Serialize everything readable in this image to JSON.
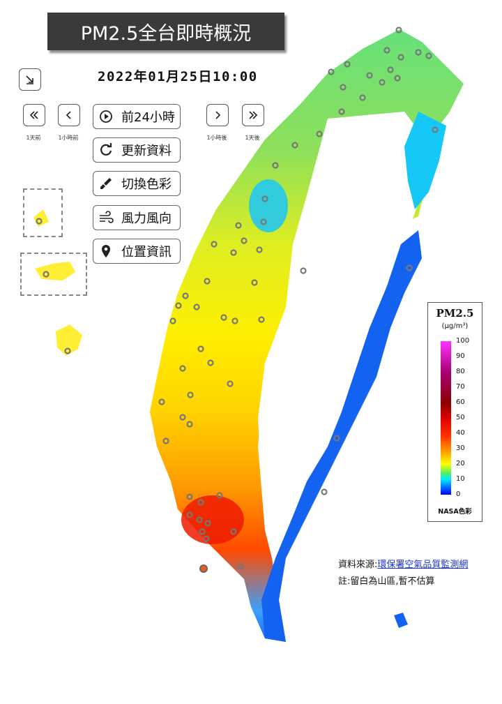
{
  "title": "PM2.5全台即時概況",
  "timestamp": "2022年01月25日10:00",
  "nav": {
    "prev_day_caption": "1天前",
    "prev_hour_caption": "1小時前",
    "next_hour_caption": "1小時後",
    "next_day_caption": "1天後"
  },
  "menu": {
    "past24": "前24小時",
    "refresh": "更新資料",
    "color": "切換色彩",
    "wind": "風力風向",
    "location": "位置資訊"
  },
  "legend": {
    "title": "PM2.5",
    "unit": "(µg/m³)",
    "ticks": [
      "100",
      "90",
      "80",
      "70",
      "60",
      "50",
      "40",
      "30",
      "20",
      "10",
      "0"
    ],
    "name": "NASA色彩",
    "colors": {
      "low": "#0000ff",
      "mid": "#ffff00",
      "high": "#dd0000",
      "max": "#ff33ff"
    }
  },
  "source": {
    "label": "資料來源:",
    "link": "環保署空氣品質監測網",
    "note": "註:留白為山區,暫不估算"
  }
}
